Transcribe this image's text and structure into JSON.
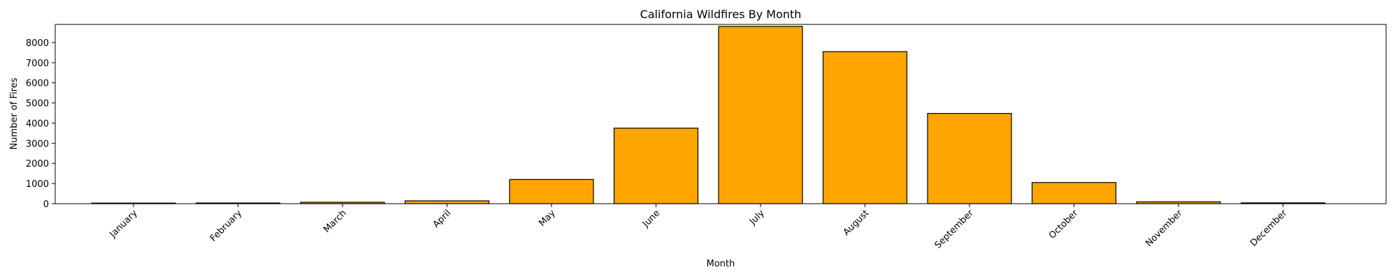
{
  "chart_data": {
    "type": "bar",
    "title": "California Wildfires By Month",
    "xlabel": "Month",
    "ylabel": "Number of Fires",
    "categories": [
      "January",
      "February",
      "March",
      "April",
      "May",
      "June",
      "July",
      "August",
      "September",
      "October",
      "November",
      "December"
    ],
    "values": [
      30,
      35,
      70,
      140,
      1200,
      3750,
      8800,
      7550,
      4480,
      1050,
      90,
      40
    ],
    "ylim": [
      0,
      8900
    ],
    "yticks": [
      0,
      1000,
      2000,
      3000,
      4000,
      5000,
      6000,
      7000,
      8000
    ],
    "ytick_labels": [
      "0",
      "1000",
      "2000",
      "3000",
      "4000",
      "5000",
      "6000",
      "7000",
      "8000"
    ],
    "bar_color": "#FFA500",
    "edge_color": "#000000",
    "grid": false,
    "legend": false
  }
}
